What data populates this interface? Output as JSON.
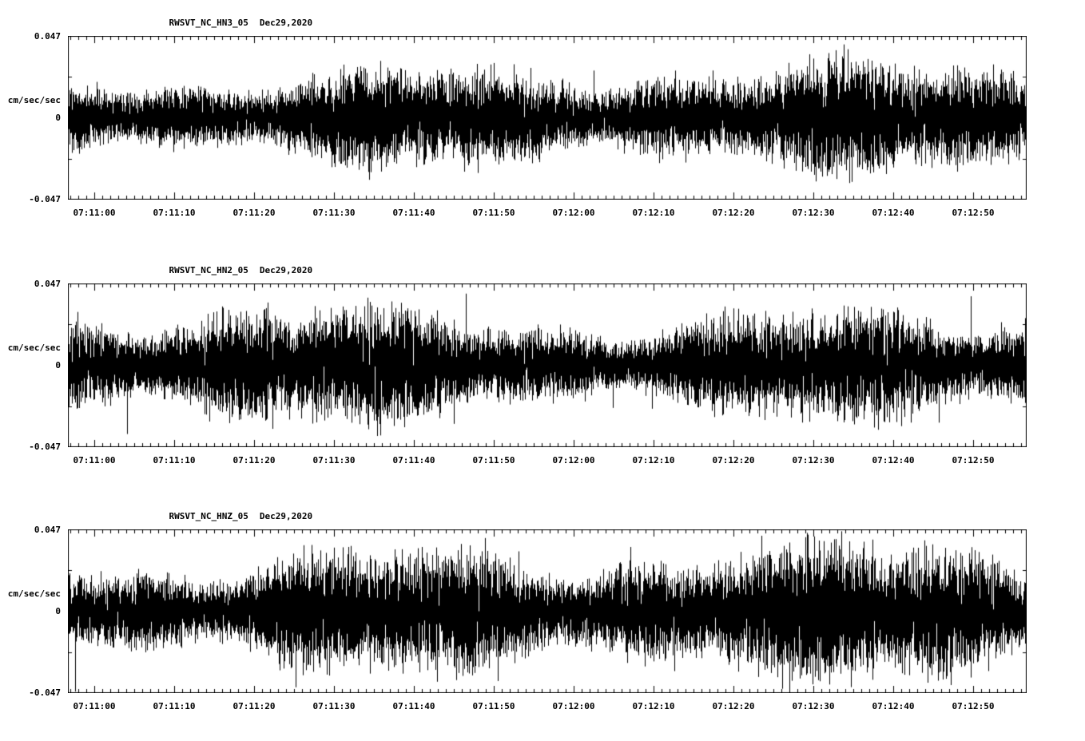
{
  "page": {
    "background": "#ffffff",
    "trace_color": "#000000",
    "axis_color": "#000000",
    "description": "Three-component seismogram strip chart, station RWSVT network NC, Dec 29 2020"
  },
  "chart_data": [
    {
      "type": "line",
      "title": "RWSVT_NC_HN3_05",
      "date": "Dec29,2020",
      "ylabel": "cm/sec/sec",
      "ylim": [
        -0.047,
        0.047
      ],
      "yticks": [
        0.047,
        0,
        -0.047
      ],
      "ytick_labels": [
        "0.047",
        "0",
        "-0.047"
      ],
      "xtick_labels": [
        "07:11:00",
        "07:11:10",
        "07:11:20",
        "07:11:30",
        "07:11:40",
        "07:11:50",
        "07:12:00",
        "07:12:10",
        "07:12:20",
        "07:12:30",
        "07:12:40",
        "07:12:50"
      ],
      "x_start": "07:10:57",
      "x_end": "07:12:57",
      "x_tick_interval_sec": 10,
      "series_desc": "dense broadband seismic acceleration noise, zero-mean, peaks near +/-0.035 cm/sec/sec",
      "noise": {
        "seed": 11,
        "rms": 0.27,
        "spike_prob": 0.012,
        "spike_amp": 0.8
      }
    },
    {
      "type": "line",
      "title": "RWSVT_NC_HN2_05",
      "date": "Dec29,2020",
      "ylabel": "cm/sec/sec",
      "ylim": [
        -0.047,
        0.047
      ],
      "yticks": [
        0.047,
        0,
        -0.047
      ],
      "ytick_labels": [
        "0.047",
        "0",
        "-0.047"
      ],
      "xtick_labels": [
        "07:11:00",
        "07:11:10",
        "07:11:20",
        "07:11:30",
        "07:11:40",
        "07:11:50",
        "07:12:00",
        "07:12:10",
        "07:12:20",
        "07:12:30",
        "07:12:40",
        "07:12:50"
      ],
      "x_start": "07:10:57",
      "x_end": "07:12:57",
      "x_tick_interval_sec": 10,
      "series_desc": "dense broadband seismic acceleration noise, zero-mean, peaks near +/-0.04 cm/sec/sec",
      "noise": {
        "seed": 22,
        "rms": 0.3,
        "spike_prob": 0.015,
        "spike_amp": 0.88
      }
    },
    {
      "type": "line",
      "title": "RWSVT_NC_HNZ_05",
      "date": "Dec29,2020",
      "ylabel": "cm/sec/sec",
      "ylim": [
        -0.047,
        0.047
      ],
      "yticks": [
        0.047,
        0,
        -0.047
      ],
      "ytick_labels": [
        "0.047",
        "0",
        "-0.047"
      ],
      "xtick_labels": [
        "07:11:00",
        "07:11:10",
        "07:11:20",
        "07:11:30",
        "07:11:40",
        "07:11:50",
        "07:12:00",
        "07:12:10",
        "07:12:20",
        "07:12:30",
        "07:12:40",
        "07:12:50"
      ],
      "x_start": "07:10:57",
      "x_end": "07:12:57",
      "x_tick_interval_sec": 10,
      "series_desc": "dense broadband seismic acceleration noise, zero-mean, largest amplitudes of the three components, spikes reaching +/-0.047 cm/sec/sec",
      "noise": {
        "seed": 33,
        "rms": 0.34,
        "spike_prob": 0.02,
        "spike_amp": 1.0
      }
    }
  ]
}
